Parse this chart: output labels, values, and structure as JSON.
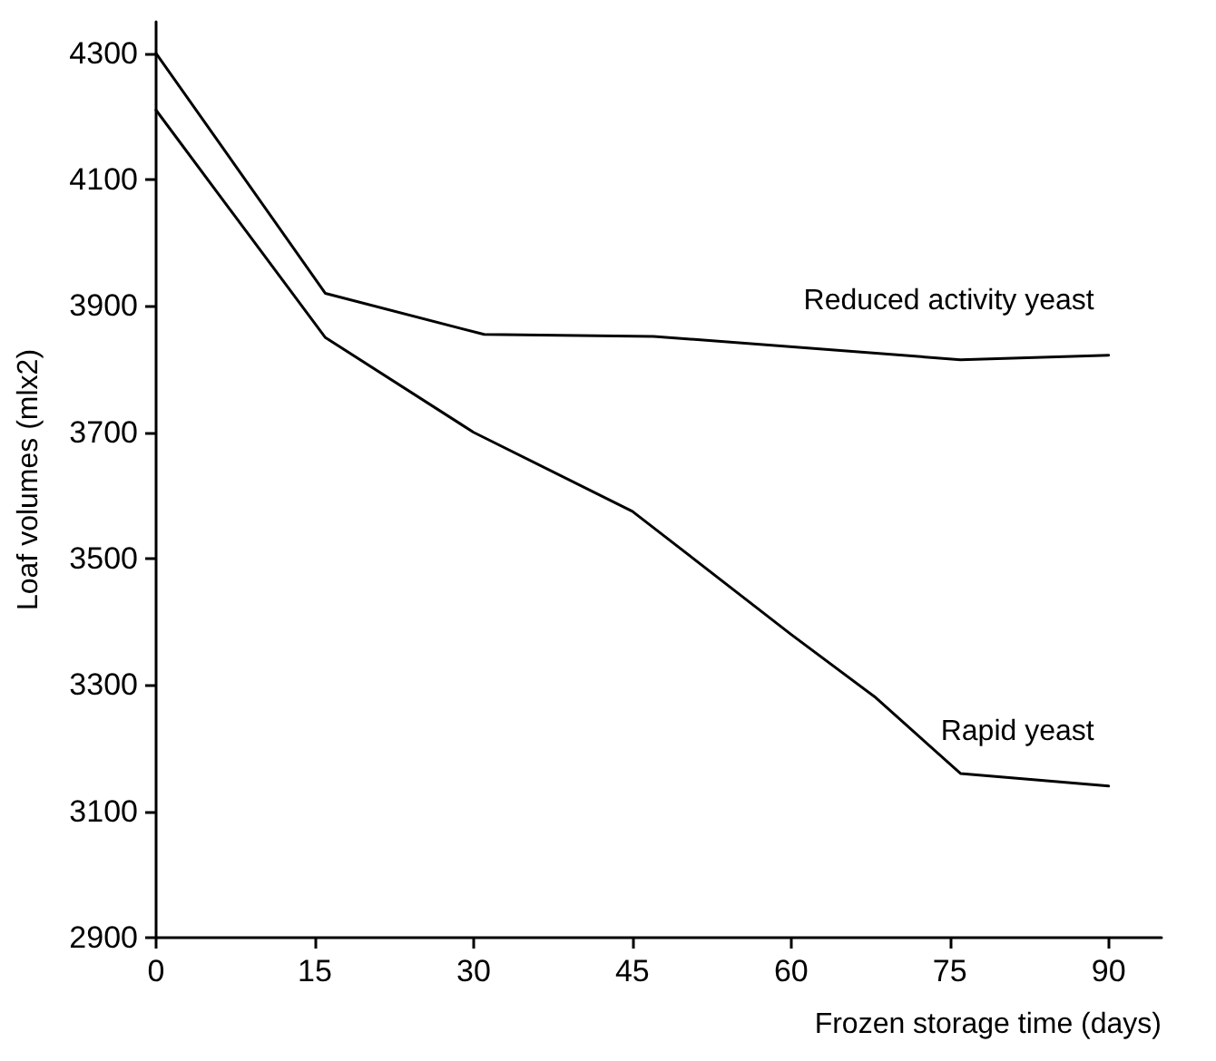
{
  "chart_data": {
    "type": "line",
    "xlabel": "Frozen storage time (days)",
    "ylabel": "Loaf volumes (mlx2)",
    "series": [
      {
        "name": "Reduced activity yeast",
        "color": "#000000",
        "x": [
          0,
          16,
          31,
          47,
          76,
          90
        ],
        "values": [
          4300,
          3920,
          3855,
          3852,
          3815,
          3822
        ]
      },
      {
        "name": "Rapid yeast",
        "color": "#000000",
        "x": [
          0,
          16,
          30,
          45,
          60,
          68,
          76,
          90
        ],
        "values": [
          4210,
          3850,
          3700,
          3575,
          3380,
          3280,
          3160,
          3140
        ]
      }
    ],
    "xlim": [
      0,
      95
    ],
    "xticks": [
      0,
      15,
      30,
      45,
      60,
      75,
      90
    ],
    "ylim": [
      2900,
      4350
    ],
    "yticks": [
      2900,
      3100,
      3300,
      3500,
      3700,
      3900,
      4100,
      4300
    ],
    "grid": false,
    "marker": "none",
    "line_style": "solid"
  }
}
